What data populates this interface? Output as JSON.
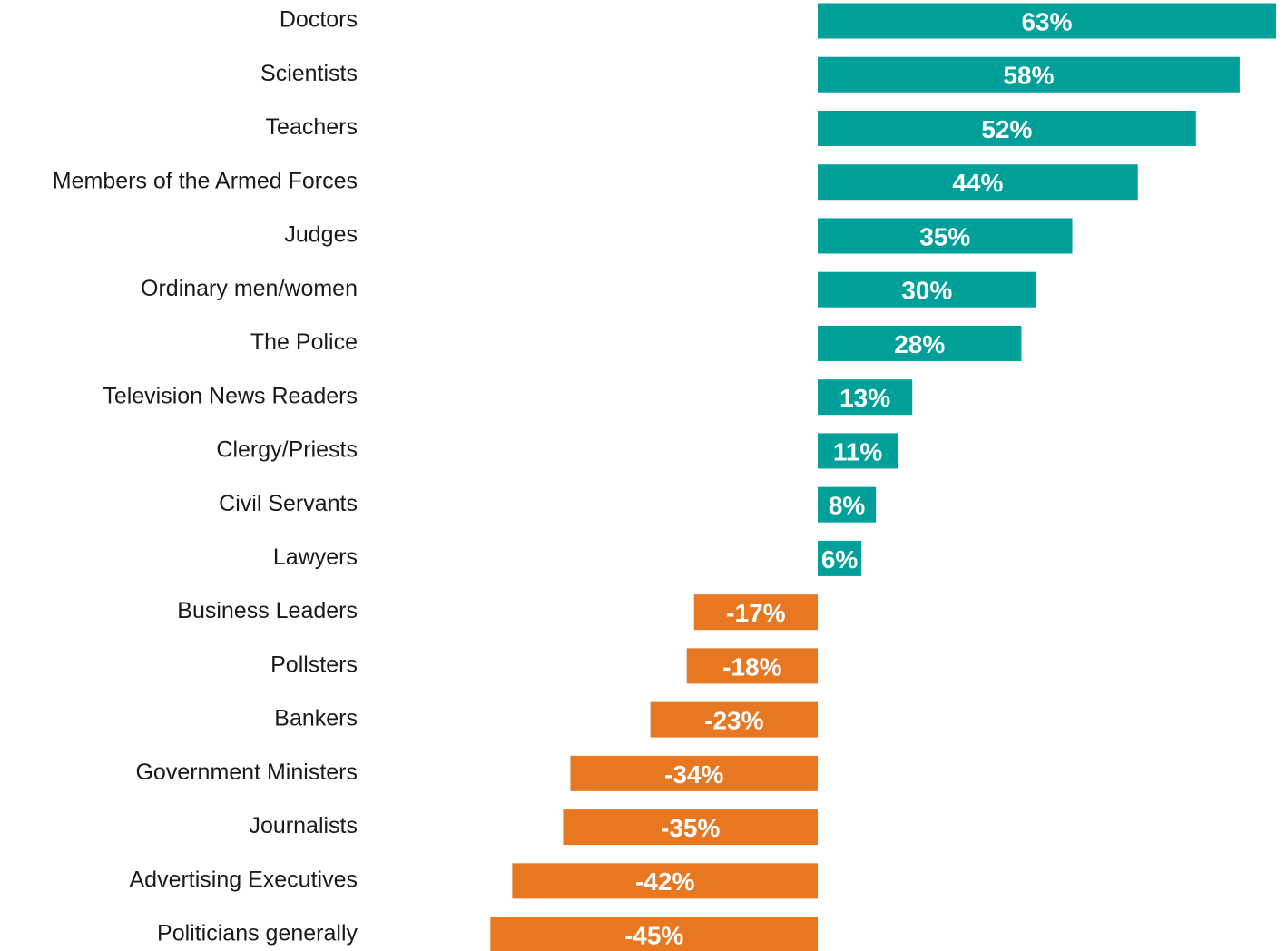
{
  "chart_data": {
    "type": "bar",
    "orientation": "horizontal",
    "categories": [
      "Doctors",
      "Scientists",
      "Teachers",
      "Members of the Armed Forces",
      "Judges",
      "Ordinary men/women",
      "The Police",
      "Television News Readers",
      "Clergy/Priests",
      "Civil Servants",
      "Lawyers",
      "Business Leaders",
      "Pollsters",
      "Bankers",
      "Government Ministers",
      "Journalists",
      "Advertising Executives",
      "Politicians generally"
    ],
    "values": [
      63,
      58,
      52,
      44,
      35,
      30,
      28,
      13,
      11,
      8,
      6,
      -17,
      -18,
      -23,
      -34,
      -35,
      -42,
      -45
    ],
    "value_labels": [
      "63%",
      "58%",
      "52%",
      "44%",
      "35%",
      "30%",
      "28%",
      "13%",
      "11%",
      "8%",
      "6%",
      "-17%",
      "-18%",
      "-23%",
      "-34%",
      "-35%",
      "-42%",
      "-45%"
    ],
    "colors": {
      "positive": "#00a09a",
      "negative": "#e87722"
    },
    "xlim": [
      -63,
      63
    ],
    "grid": false
  }
}
